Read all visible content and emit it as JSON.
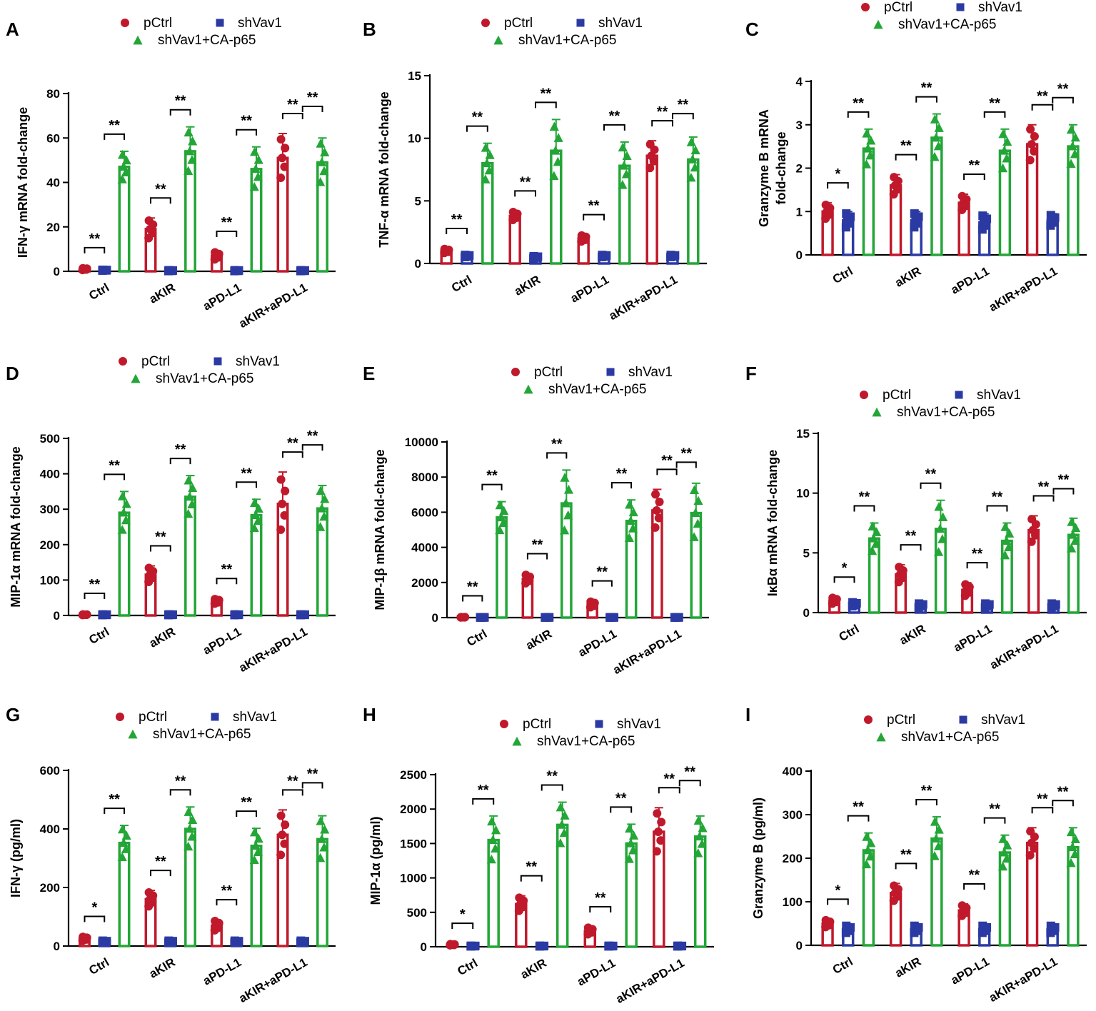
{
  "colors": {
    "pCtrl": "#c0192c",
    "shVav1": "#2b3aa3",
    "shVav1_CA_p65": "#23a637"
  },
  "legend": {
    "pCtrl": "pCtrl",
    "shVav1": "shVav1",
    "shVav1_CA_p65": "shVav1+CA-p65"
  },
  "chart_data": [
    {
      "panel": "A",
      "type": "bar",
      "ylabel": "IFN-γ mRNA fold-change",
      "categories": [
        "Ctrl",
        "aKIR",
        "aPD-L1",
        "aKIR+aPD-L1"
      ],
      "yticks": [
        0,
        20,
        40,
        60,
        80
      ],
      "ylim": [
        0,
        80
      ],
      "series": [
        {
          "name": "pCtrl",
          "values": [
            1,
            19,
            7,
            51
          ],
          "err": [
            0.5,
            5,
            2,
            11
          ]
        },
        {
          "name": "shVav1",
          "values": [
            0.5,
            0.3,
            0.3,
            0.3
          ],
          "err": [
            0.2,
            0.2,
            0.2,
            0.2
          ]
        },
        {
          "name": "shVav1+CA-p65",
          "values": [
            47,
            54,
            46,
            49
          ],
          "err": [
            7,
            11,
            10,
            11
          ]
        }
      ],
      "significance": [
        [
          "**",
          "**"
        ],
        [
          "**",
          "**"
        ],
        [
          "**",
          "**"
        ],
        [
          "**",
          "**"
        ]
      ]
    },
    {
      "panel": "B",
      "type": "bar",
      "ylabel": "TNF-α mRNA fold-change",
      "categories": [
        "Ctrl",
        "aKIR",
        "aPD-L1",
        "aKIR+aPD-L1"
      ],
      "yticks": [
        0,
        5,
        10,
        15
      ],
      "ylim": [
        0,
        15
      ],
      "series": [
        {
          "name": "pCtrl",
          "values": [
            1,
            3.8,
            2,
            8.6
          ],
          "err": [
            0.2,
            0.4,
            0.3,
            1.2
          ]
        },
        {
          "name": "shVav1",
          "values": [
            0.6,
            0.5,
            0.6,
            0.6
          ],
          "err": [
            0.1,
            0.1,
            0.1,
            0.1
          ]
        },
        {
          "name": "shVav1+CA-p65",
          "values": [
            8,
            9,
            7.8,
            8.3
          ],
          "err": [
            1.6,
            2.5,
            1.9,
            1.8
          ]
        }
      ],
      "significance": [
        [
          "**",
          "**"
        ],
        [
          "**",
          "**"
        ],
        [
          "**",
          "**"
        ],
        [
          "**",
          "**"
        ]
      ]
    },
    {
      "panel": "C",
      "type": "bar",
      "ylabel": "Granzyme B mRNA fold-change",
      "categories": [
        "Ctrl",
        "aKIR",
        "aPD-L1",
        "aKIR+aPD-L1"
      ],
      "yticks": [
        0,
        1,
        2,
        3,
        4
      ],
      "ylim": [
        0,
        4
      ],
      "series": [
        {
          "name": "pCtrl",
          "values": [
            1,
            1.6,
            1.2,
            2.55
          ],
          "err": [
            0.2,
            0.25,
            0.2,
            0.45
          ]
        },
        {
          "name": "shVav1",
          "values": [
            0.8,
            0.8,
            0.75,
            0.8
          ],
          "err": [
            0.2,
            0.2,
            0.2,
            0.15
          ]
        },
        {
          "name": "shVav1+CA-p65",
          "values": [
            2.45,
            2.7,
            2.4,
            2.5
          ],
          "err": [
            0.45,
            0.55,
            0.5,
            0.5
          ]
        }
      ],
      "significance": [
        [
          "*",
          "**"
        ],
        [
          "**",
          "**"
        ],
        [
          "**",
          "**"
        ],
        [
          "**",
          "**"
        ]
      ]
    },
    {
      "panel": "D",
      "type": "bar",
      "ylabel": "MIP-1α mRNA fold-change",
      "categories": [
        "Ctrl",
        "aKIR",
        "aPD-L1",
        "aKIR+aPD-L1"
      ],
      "yticks": [
        0,
        100,
        200,
        300,
        400,
        500
      ],
      "ylim": [
        0,
        500
      ],
      "series": [
        {
          "name": "pCtrl",
          "values": [
            2,
            115,
            40,
            315
          ],
          "err": [
            1,
            25,
            8,
            90
          ]
        },
        {
          "name": "shVav1",
          "values": [
            2,
            2,
            2,
            2
          ],
          "err": [
            1,
            1,
            1,
            1
          ]
        },
        {
          "name": "shVav1+CA-p65",
          "values": [
            290,
            335,
            283,
            302
          ],
          "err": [
            60,
            60,
            45,
            65
          ]
        }
      ],
      "significance": [
        [
          "**",
          "**"
        ],
        [
          "**",
          "**"
        ],
        [
          "**",
          "**"
        ],
        [
          "**",
          "**"
        ]
      ]
    },
    {
      "panel": "E",
      "type": "bar",
      "ylabel": "MIP-1β mRNA fold-change",
      "categories": [
        "Ctrl",
        "aKIR",
        "aPD-L1",
        "aKIR+aPD-L1"
      ],
      "yticks": [
        0,
        2000,
        4000,
        6000,
        8000,
        10000
      ],
      "ylim": [
        0,
        10000
      ],
      "series": [
        {
          "name": "pCtrl",
          "values": [
            20,
            2200,
            750,
            6100
          ],
          "err": [
            10,
            300,
            200,
            1200
          ]
        },
        {
          "name": "shVav1",
          "values": [
            10,
            10,
            10,
            10
          ],
          "err": [
            5,
            5,
            5,
            5
          ]
        },
        {
          "name": "shVav1+CA-p65",
          "values": [
            5700,
            6500,
            5500,
            5950
          ],
          "err": [
            900,
            1900,
            1200,
            1700
          ]
        }
      ],
      "significance": [
        [
          "**",
          "**"
        ],
        [
          "**",
          "**"
        ],
        [
          "**",
          "**"
        ],
        [
          "**",
          "**"
        ]
      ]
    },
    {
      "panel": "F",
      "type": "bar",
      "ylabel": "IκBα mRNA fold-change",
      "categories": [
        "Ctrl",
        "aKIR",
        "aPD-L1",
        "aKIR+aPD-L1"
      ],
      "yticks": [
        0,
        5,
        10,
        15
      ],
      "ylim": [
        0,
        15
      ],
      "series": [
        {
          "name": "pCtrl",
          "values": [
            1,
            3.2,
            1.9,
            6.9
          ],
          "err": [
            0.3,
            0.8,
            0.6,
            1.2
          ]
        },
        {
          "name": "shVav1",
          "values": [
            0.7,
            0.6,
            0.6,
            0.6
          ],
          "err": [
            0.2,
            0.2,
            0.2,
            0.2
          ]
        },
        {
          "name": "shVav1+CA-p65",
          "values": [
            6.2,
            7,
            6,
            6.5
          ],
          "err": [
            1.3,
            2.4,
            1.5,
            1.4
          ]
        }
      ],
      "significance": [
        [
          "*",
          "**"
        ],
        [
          "**",
          "**"
        ],
        [
          "**",
          "**"
        ],
        [
          "**",
          "**"
        ]
      ]
    },
    {
      "panel": "G",
      "type": "bar",
      "ylabel": "IFN-γ (pg/ml)",
      "categories": [
        "Ctrl",
        "aKIR",
        "aPD-L1",
        "aKIR+aPD-L1"
      ],
      "yticks": [
        0,
        200,
        400,
        600
      ],
      "ylim": [
        0,
        600
      ],
      "series": [
        {
          "name": "pCtrl",
          "values": [
            25,
            160,
            70,
            380
          ],
          "err": [
            8,
            30,
            20,
            85
          ]
        },
        {
          "name": "shVav1",
          "values": [
            15,
            15,
            15,
            15
          ],
          "err": [
            4,
            4,
            4,
            4
          ]
        },
        {
          "name": "shVav1+CA-p65",
          "values": [
            352,
            400,
            342,
            365
          ],
          "err": [
            60,
            75,
            60,
            80
          ]
        }
      ],
      "significance": [
        [
          "*",
          "**"
        ],
        [
          "**",
          "**"
        ],
        [
          "**",
          "**"
        ],
        [
          "**",
          "**"
        ]
      ]
    },
    {
      "panel": "H",
      "type": "bar",
      "ylabel": "MIP-1α (pg/ml)",
      "categories": [
        "Ctrl",
        "aKIR",
        "aPD-L1",
        "aKIR+aPD-L1"
      ],
      "yticks": [
        0,
        500,
        1000,
        1500,
        2000,
        2500
      ],
      "ylim": [
        0,
        2500
      ],
      "series": [
        {
          "name": "pCtrl",
          "values": [
            30,
            620,
            230,
            1670
          ],
          "err": [
            10,
            120,
            60,
            350
          ]
        },
        {
          "name": "shVav1",
          "values": [
            10,
            10,
            10,
            10
          ],
          "err": [
            5,
            5,
            5,
            5
          ]
        },
        {
          "name": "shVav1+CA-p65",
          "values": [
            1550,
            1770,
            1500,
            1600
          ],
          "err": [
            350,
            330,
            280,
            300
          ]
        }
      ],
      "significance": [
        [
          "*",
          "**"
        ],
        [
          "**",
          "**"
        ],
        [
          "**",
          "**"
        ],
        [
          "**",
          "**"
        ]
      ]
    },
    {
      "panel": "I",
      "type": "bar",
      "ylabel": "Granzyme B (pg/ml)",
      "categories": [
        "Ctrl",
        "aKIR",
        "aPD-L1",
        "aKIR+aPD-L1"
      ],
      "yticks": [
        0,
        100,
        200,
        300,
        400
      ],
      "ylim": [
        0,
        400
      ],
      "series": [
        {
          "name": "pCtrl",
          "values": [
            50,
            120,
            80,
            235
          ],
          "err": [
            10,
            22,
            15,
            35
          ]
        },
        {
          "name": "shVav1",
          "values": [
            37,
            37,
            37,
            37
          ],
          "err": [
            10,
            10,
            10,
            10
          ]
        },
        {
          "name": "shVav1+CA-p65",
          "values": [
            218,
            245,
            213,
            225
          ],
          "err": [
            40,
            50,
            40,
            45
          ]
        }
      ],
      "significance": [
        [
          "*",
          "**"
        ],
        [
          "**",
          "**"
        ],
        [
          "**",
          "**"
        ],
        [
          "**",
          "**"
        ]
      ]
    }
  ]
}
